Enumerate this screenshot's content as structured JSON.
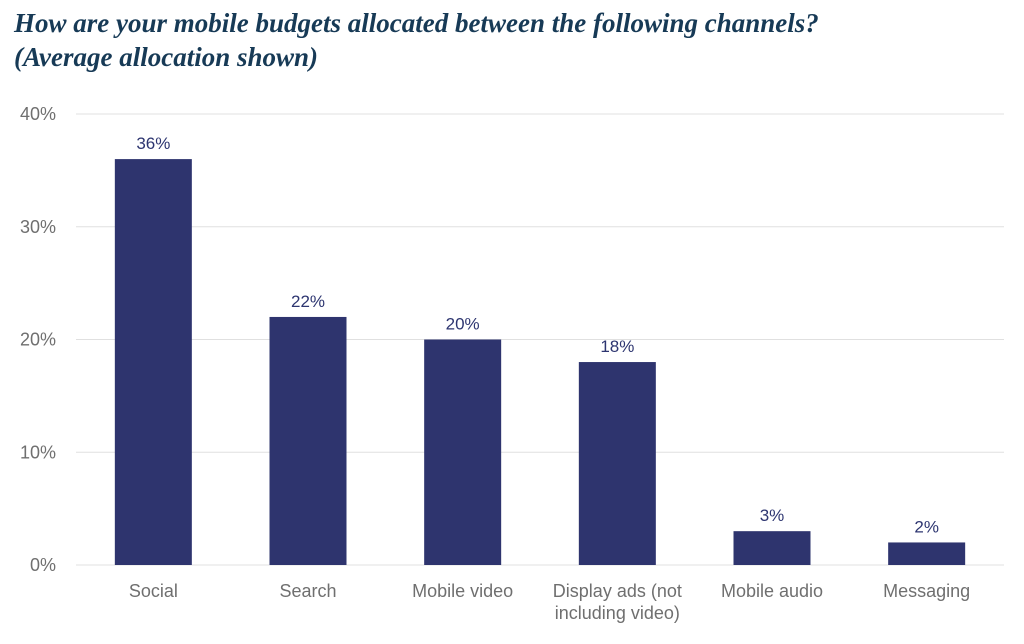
{
  "title": {
    "line1": "How are your mobile budgets allocated between the following channels?",
    "line2": "(Average allocation shown)"
  },
  "colors": {
    "bar": "#2e346e",
    "grid": "#e0e0e0",
    "axis_text": "#6f6f6f",
    "title": "#173a56"
  },
  "chart_data": {
    "type": "bar",
    "title": "How are your mobile budgets allocated between the following channels? (Average allocation shown)",
    "categories": [
      [
        "Social"
      ],
      [
        "Search"
      ],
      [
        "Mobile video"
      ],
      [
        "Display ads (not",
        "including video)"
      ],
      [
        "Mobile audio"
      ],
      [
        "Messaging"
      ]
    ],
    "values": [
      36,
      22,
      20,
      18,
      3,
      2
    ],
    "data_labels": [
      "36%",
      "22%",
      "20%",
      "18%",
      "3%",
      "2%"
    ],
    "yticks": [
      0,
      10,
      20,
      30,
      40
    ],
    "ytick_labels": [
      "0%",
      "10%",
      "20%",
      "30%",
      "40%"
    ],
    "ylim": [
      0,
      40
    ],
    "xlabel": "",
    "ylabel": "",
    "grid": true,
    "legend": "none"
  }
}
